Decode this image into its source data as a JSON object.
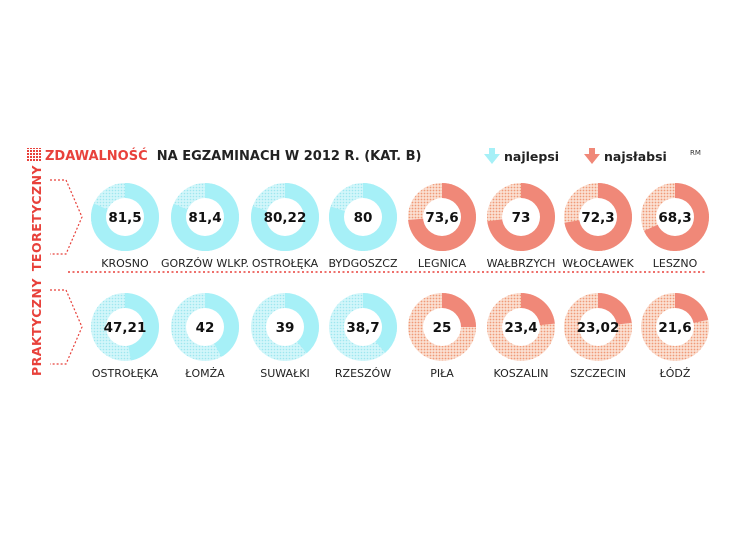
{
  "title": {
    "highlight": "ZDAWALNOŚĆ",
    "rest": "NA EGZAMINACH W 2012 R. (KAT. B)"
  },
  "legend": {
    "best": "najlepsi",
    "worst": "najsłabsi",
    "best_color": "#a6f0f7",
    "worst_color": "#f08878"
  },
  "badge": "RM",
  "chart_data": {
    "type": "donut-grid",
    "title": "ZDAWALNOŚĆ NA EGZAMINACH W 2012 R. (KAT. B)",
    "unit": "%",
    "rows": [
      {
        "label": "TEORETYCZNY",
        "items": [
          {
            "city": "KROSNO",
            "value": "81,5",
            "pct": 81.5,
            "group": "best"
          },
          {
            "city": "GORZÓW WLKP.",
            "value": "81,4",
            "pct": 81.4,
            "group": "best"
          },
          {
            "city": "OSTROŁĘKA",
            "value": "80,22",
            "pct": 80.22,
            "group": "best"
          },
          {
            "city": "BYDGOSZCZ",
            "value": "80",
            "pct": 80,
            "group": "best"
          },
          {
            "city": "LEGNICA",
            "value": "73,6",
            "pct": 73.6,
            "group": "worst"
          },
          {
            "city": "WAŁBRZYCH",
            "value": "73",
            "pct": 73,
            "group": "worst"
          },
          {
            "city": "WŁOCŁAWEK",
            "value": "72,3",
            "pct": 72.3,
            "group": "worst"
          },
          {
            "city": "LESZNO",
            "value": "68,3",
            "pct": 68.3,
            "group": "worst"
          }
        ]
      },
      {
        "label": "PRAKTYCZNY",
        "items": [
          {
            "city": "OSTROŁĘKA",
            "value": "47,21",
            "pct": 47.21,
            "group": "best"
          },
          {
            "city": "ŁOMŻA",
            "value": "42",
            "pct": 42,
            "group": "best"
          },
          {
            "city": "SUWAŁKI",
            "value": "39",
            "pct": 39,
            "group": "best"
          },
          {
            "city": "RZESZÓW",
            "value": "38,7",
            "pct": 38.7,
            "group": "best"
          },
          {
            "city": "PIŁA",
            "value": "25",
            "pct": 25,
            "group": "worst"
          },
          {
            "city": "KOSZALIN",
            "value": "23,4",
            "pct": 23.4,
            "group": "worst"
          },
          {
            "city": "SZCZECIN",
            "value": "23,02",
            "pct": 23.02,
            "group": "worst"
          },
          {
            "city": "ŁÓDŹ",
            "value": "21,6",
            "pct": 21.6,
            "group": "worst"
          }
        ]
      }
    ]
  }
}
